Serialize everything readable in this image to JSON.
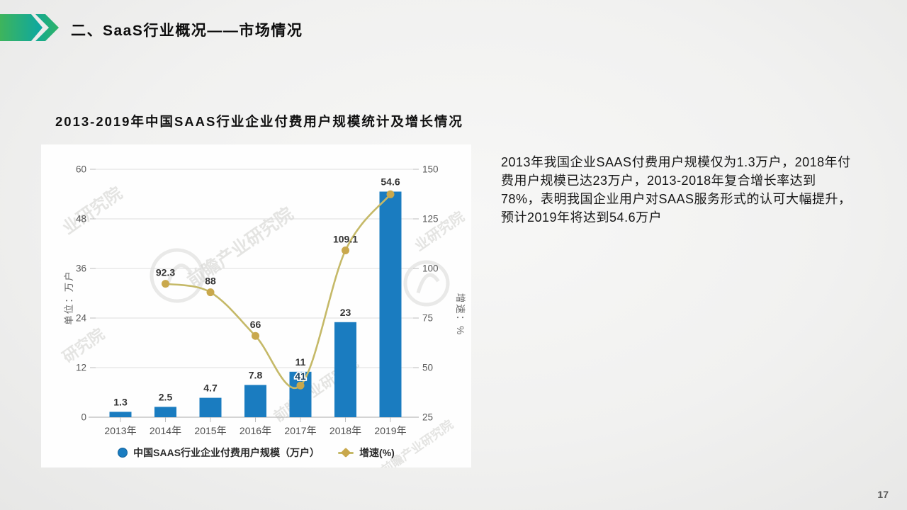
{
  "header": {
    "title": "二、SaaS行业概况——市场情况"
  },
  "section": {
    "chart_heading": "2013-2019年中国SAAS行业企业付费用户规模统计及增长情况"
  },
  "commentary": {
    "text": "2013年我国企业SAAS付费用户规模仅为1.3万户，2018年付费用户规模已达23万户，2013-2018年复合增长率达到78%，表明我国企业用户对SAAS服务形式的认可大幅提升，预计2019年将达到54.6万户"
  },
  "page": {
    "number": "17"
  },
  "watermarks": [
    "业研究院",
    "前瞻产业研究院",
    "研究院",
    "前瞻产业研究院",
    "业研究院",
    "前瞻产业研究院"
  ],
  "chart_data": {
    "type": "bar",
    "subtype": "bar+line combo, dual y-axis",
    "title": "2013-2019年中国SAAS行业企业付费用户规模统计及增长情况",
    "categories": [
      "2013年",
      "2014年",
      "2015年",
      "2016年",
      "2017年",
      "2018年",
      "2019年"
    ],
    "series": [
      {
        "name": "中国SAAS行业企业付费用户规模（万户）",
        "type": "bar",
        "y_axis": "left",
        "color": "#1a7cc0",
        "values": [
          1.3,
          2.5,
          4.7,
          7.8,
          11,
          23,
          54.6
        ],
        "labels": [
          "1.3",
          "2.5",
          "4.7",
          "7.8",
          "11",
          "23",
          "54.6"
        ]
      },
      {
        "name": "增速(%)",
        "type": "line",
        "y_axis": "right",
        "color": "#c5b968",
        "marker_color": "#c9a84c",
        "values": [
          null,
          92.3,
          88,
          66,
          41,
          109.1,
          137.4
        ],
        "labels": [
          null,
          "92.3",
          "88",
          "66",
          "41",
          "109.1",
          null
        ]
      }
    ],
    "left_axis": {
      "label": "单位：万户",
      "min": 0,
      "max": 60,
      "ticks": [
        "0",
        "12",
        "24",
        "36",
        "48",
        "60"
      ]
    },
    "right_axis": {
      "label": "增速：%",
      "min": 25,
      "max": 150,
      "ticks": [
        "25",
        "50",
        "75",
        "100",
        "125",
        "150"
      ]
    },
    "grid": true,
    "legend_position": "bottom"
  }
}
